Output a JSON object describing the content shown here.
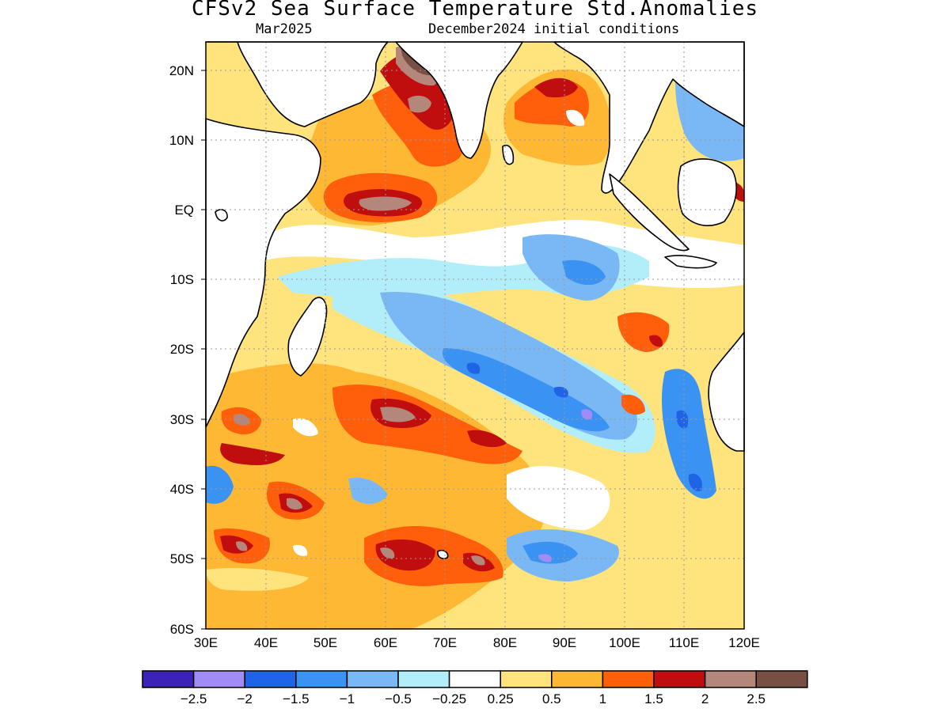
{
  "title": "CFSv2 Sea Surface Temperature Std.Anomalies",
  "subtitle_left": "Mar2025",
  "subtitle_right": "December2024 initial conditions",
  "map": {
    "lon_range": [
      30,
      120
    ],
    "lat_range": [
      -60,
      24
    ],
    "lat_ticks": [
      "20N",
      "10N",
      "EQ",
      "10S",
      "20S",
      "30S",
      "40S",
      "50S",
      "60S"
    ],
    "lon_ticks": [
      "30E",
      "40E",
      "50E",
      "60E",
      "70E",
      "80E",
      "90E",
      "100E",
      "110E",
      "120E"
    ],
    "grid": "dotted"
  },
  "colorbar": {
    "colors": [
      "#3d22b8",
      "#a18cf5",
      "#1f63e6",
      "#3a92f2",
      "#7ab8f5",
      "#b2eefa",
      "#ffffff",
      "#ffe37d",
      "#ffb833",
      "#ff5e0a",
      "#c00d0d",
      "#b5867a",
      "#784f44"
    ],
    "labels": [
      "−2.5",
      "−2",
      "−1.5",
      "−1",
      "−0.5",
      "−0.25",
      "0.25",
      "0.5",
      "1",
      "1.5",
      "2",
      "2.5"
    ]
  },
  "palette": {
    "land": "#ffffff",
    "coast": "#000000"
  }
}
